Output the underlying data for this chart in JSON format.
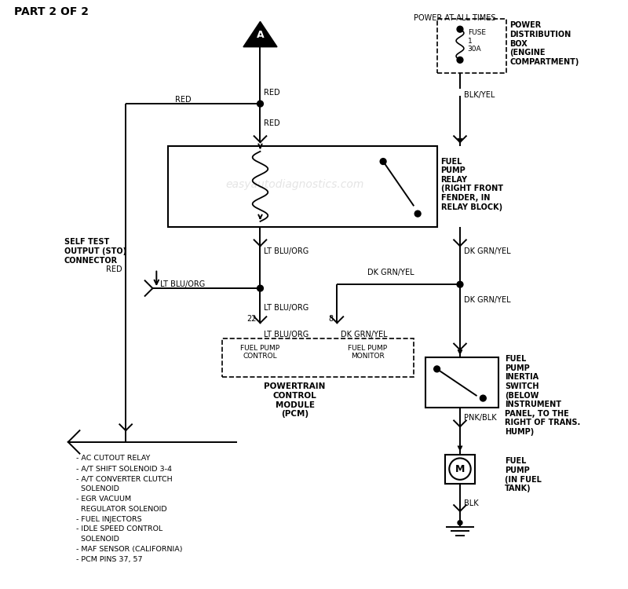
{
  "title": "PART 2 OF 2",
  "watermark": "easyautodiagnostics.com",
  "bg_color": "#ffffff",
  "line_color": "#000000",
  "power_at_all_times": "POWER AT ALL TIMES",
  "power_dist_label": "POWER\nDISTRIBUTION\nBOX\n(ENGINE\nCOMPARTMENT)",
  "fuel_pump_relay_label": "FUEL\nPUMP\nRELAY\n(RIGHT FRONT\nFENDER, IN\nRELAY BLOCK)",
  "self_test_label": "SELF TEST\nOUTPUT (STO)\nCONNECTOR",
  "pcm_label": "POWERTRAIN\nCONTROL\nMODULE\n(PCM)",
  "fuel_pump_control": "FUEL PUMP\nCONTROL",
  "fuel_pump_monitor": "FUEL PUMP\nMONITOR",
  "fuel_pump_inertia_label": "FUEL\nPUMP\nINERTIA\nSWITCH\n(BELOW\nINSTRUMENT\nPANEL, TO THE\nRIGHT OF TRANS.\nHUMP)",
  "fuel_pump_label": "FUEL\nPUMP\n(IN FUEL\nTANK)",
  "load_list": "- AC CUTOUT RELAY\n- A/T SHIFT SOLENOID 3-4\n- A/T CONVERTER CLUTCH\n  SOLENOID\n- EGR VACUUM\n  REGULATOR SOLENOID\n- FUEL INJECTORS\n- IDLE SPEED CONTROL\n  SOLENOID\n- MAF SENSOR (CALIFORNIA)\n- PCM PINS 37, 57"
}
